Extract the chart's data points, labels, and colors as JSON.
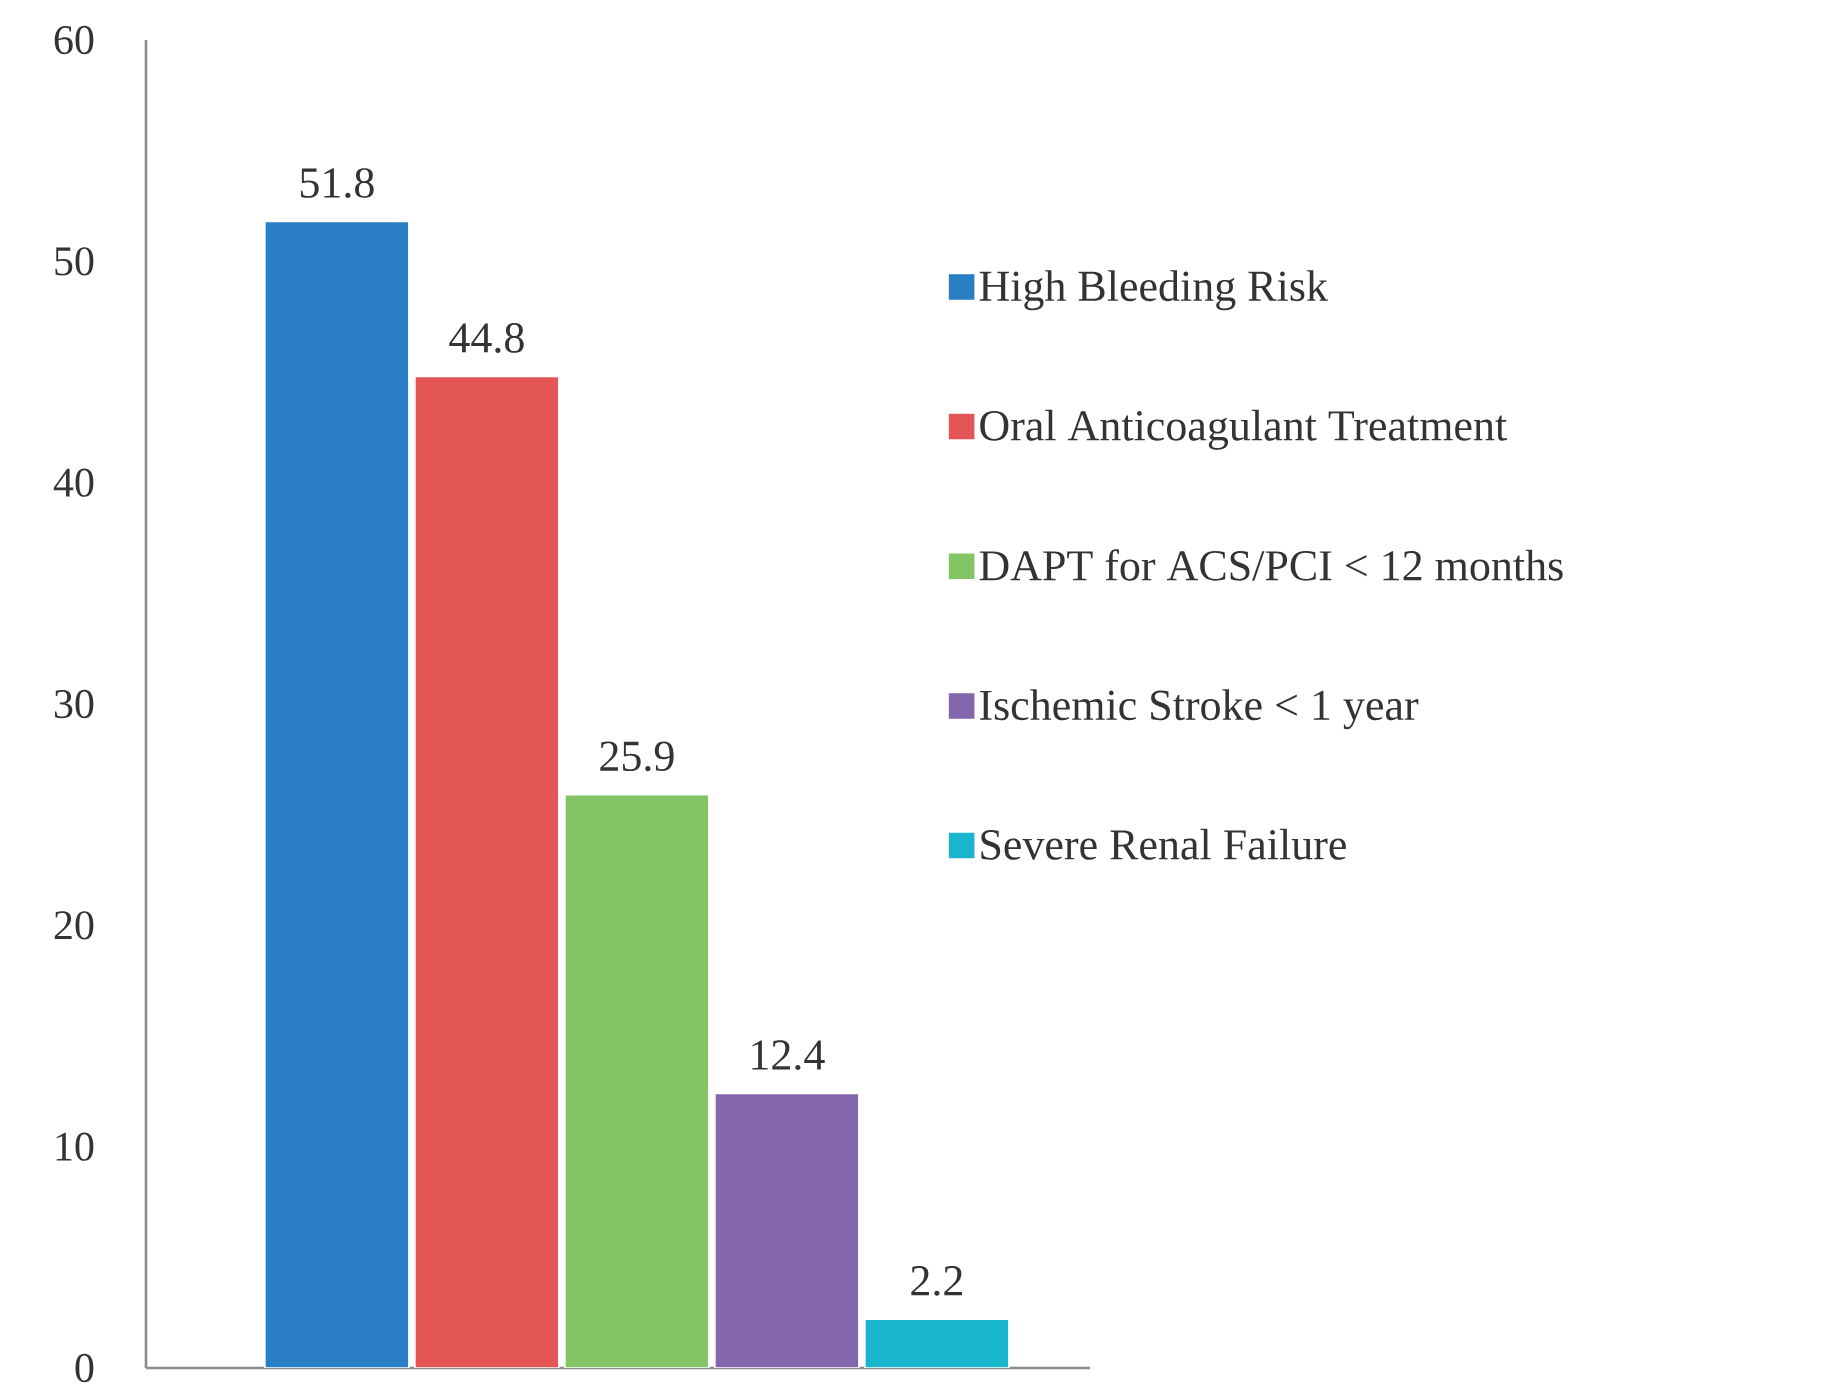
{
  "chart_data": {
    "type": "bar",
    "categories": [
      null
    ],
    "series": [
      {
        "name": "High Bleeding Risk",
        "color": "#2a7ec4",
        "values": [
          51.8
        ]
      },
      {
        "name": "Oral Anticoagulant Treatment",
        "color": "#e45556",
        "values": [
          44.8
        ]
      },
      {
        "name": "DAPT for ACS/PCI < 12 months",
        "color": "#83c464",
        "values": [
          25.9
        ]
      },
      {
        "name": "Ischemic Stroke < 1 year",
        "color": "#8466ad",
        "values": [
          12.4
        ]
      },
      {
        "name": "Severe Renal Failure",
        "color": "#18b5cc",
        "values": [
          2.2
        ]
      }
    ],
    "ylim": [
      0,
      60
    ],
    "yticks": [
      0,
      10,
      20,
      30,
      40,
      50,
      60
    ],
    "data_labels": true,
    "legend": "right"
  }
}
